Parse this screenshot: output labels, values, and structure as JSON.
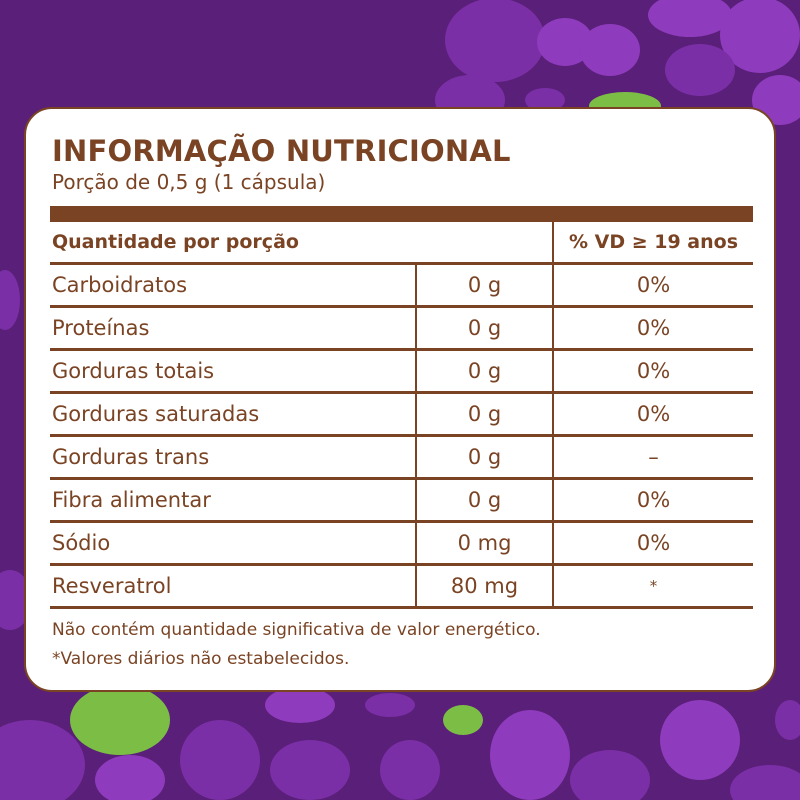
{
  "colors": {
    "background": "#5a1f78",
    "blob_purple": "#7b2fa6",
    "blob_light_purple": "#8e3bbd",
    "blob_green": "#7cbe45",
    "text_brown": "#7a4424",
    "card": "#ffffff"
  },
  "label": {
    "title": "INFORMAÇÃO NUTRICIONAL",
    "serving": "Porção de 0,5 g (1 cápsula)",
    "header_quantity": "Quantidade por porção",
    "header_vd": "% VD ≥ 19 anos",
    "rows": [
      {
        "name": "Carboidratos",
        "amount": "0 g",
        "vd": "0%"
      },
      {
        "name": "Proteínas",
        "amount": "0 g",
        "vd": "0%"
      },
      {
        "name": "Gorduras totais",
        "amount": "0 g",
        "vd": "0%"
      },
      {
        "name": "Gorduras saturadas",
        "amount": "0 g",
        "vd": "0%"
      },
      {
        "name": "Gorduras trans",
        "amount": "0 g",
        "vd": "–"
      },
      {
        "name": "Fibra alimentar",
        "amount": "0 g",
        "vd": "0%"
      },
      {
        "name": "Sódio",
        "amount": "0 mg",
        "vd": "0%"
      },
      {
        "name": "Resveratrol",
        "amount": "80 mg",
        "vd": "*"
      }
    ],
    "footnote_1": "Não contém quantidade significativa de valor energético.",
    "footnote_2": "*Valores diários não estabelecidos."
  }
}
